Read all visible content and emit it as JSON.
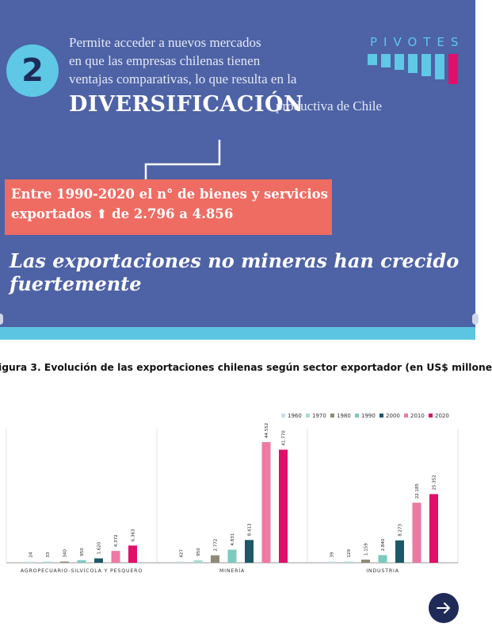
{
  "intro": {
    "badge": "2",
    "lines": [
      "Permite acceder a nuevos mercados",
      "en que las empresas chilenas tienen",
      "ventajas comparativas, lo que resulta en la"
    ],
    "highlight": "DIVERSIFICACIÓN",
    "highlight_tail": "productiva de Chile",
    "brand": "PIVOTES"
  },
  "callout": {
    "line1": "Entre 1990-2020 el n° de bienes y servicios",
    "line2": "exportados ⬆ de 2.796 a 4.856"
  },
  "headline": {
    "line1": "Las exportaciones no mineras han crecido",
    "line2": "fuertemente"
  },
  "figure": {
    "title": "igura 3. Evolución de las exportaciones chilenas según sector exportador (en US$ millone"
  },
  "colors": {
    "panel": "#4e62a6",
    "band": "#5cc6e2",
    "callout": "#ef6c63"
  },
  "chart_data": {
    "type": "bar",
    "categories": [
      "AGROPECUARIO-SILVÍCOLA Y PESQUERO",
      "MINERÍA",
      "INDUSTRIA"
    ],
    "series": [
      {
        "name": "1960",
        "color": "#c9dfe8",
        "values": [
          24,
          427,
          39
        ]
      },
      {
        "name": "1970",
        "color": "#a9dcd4",
        "values": [
          33,
          950,
          129
        ]
      },
      {
        "name": "1980",
        "color": "#8e8a76",
        "values": [
          340,
          2772,
          1159
        ]
      },
      {
        "name": "1990",
        "color": "#7ccabd",
        "values": [
          950,
          4831,
          2840
        ]
      },
      {
        "name": "2000",
        "color": "#1e5868",
        "values": [
          1620,
          8413,
          8273
        ]
      },
      {
        "name": "2010",
        "color": "#ec7aa3",
        "values": [
          4372,
          44552,
          22185
        ]
      },
      {
        "name": "2020",
        "color": "#e0106a",
        "values": [
          6363,
          41770,
          25352
        ]
      }
    ],
    "value_labels": [
      [
        "24",
        "33",
        "340",
        "950",
        "1.620",
        "4.372",
        "6.363"
      ],
      [
        "427",
        "950",
        "2.772",
        "4.831",
        "8.413",
        "44.552",
        "41.770"
      ],
      [
        "39",
        "129",
        "1.159",
        "2.840",
        "8.273",
        "22.185",
        "25.352"
      ]
    ],
    "ylim": [
      0,
      44552
    ],
    "legend_position": "top-right",
    "grid": false
  }
}
